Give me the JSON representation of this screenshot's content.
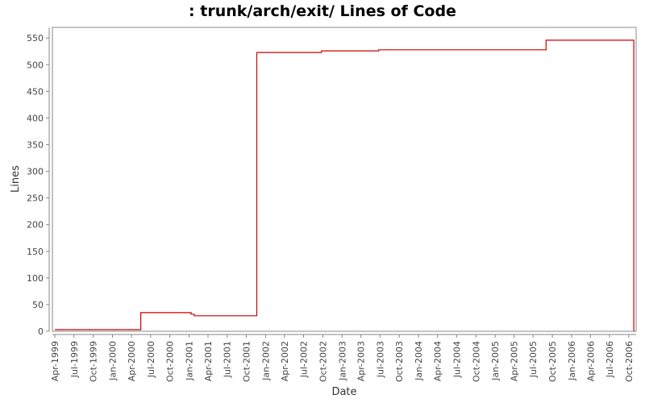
{
  "chart_data": {
    "type": "line",
    "title": ": trunk/arch/exit/ Lines of Code",
    "xlabel": "Date",
    "ylabel": "Lines",
    "ylim": [
      0,
      570
    ],
    "yticks": [
      0,
      50,
      100,
      150,
      200,
      250,
      300,
      350,
      400,
      450,
      500,
      550
    ],
    "xlim": [
      "1999-03-20",
      "2006-11-05"
    ],
    "xticks": [
      {
        "label": "Apr-1999",
        "date": "1999-04-01"
      },
      {
        "label": "Jul-1999",
        "date": "1999-07-01"
      },
      {
        "label": "Oct-1999",
        "date": "1999-10-01"
      },
      {
        "label": "Jan-2000",
        "date": "2000-01-01"
      },
      {
        "label": "Apr-2000",
        "date": "2000-04-01"
      },
      {
        "label": "Jul-2000",
        "date": "2000-07-01"
      },
      {
        "label": "Oct-2000",
        "date": "2000-10-01"
      },
      {
        "label": "Jan-2001",
        "date": "2001-01-01"
      },
      {
        "label": "Apr-2001",
        "date": "2001-04-01"
      },
      {
        "label": "Jul-2001",
        "date": "2001-07-01"
      },
      {
        "label": "Oct-2001",
        "date": "2001-10-01"
      },
      {
        "label": "Jan-2002",
        "date": "2002-01-01"
      },
      {
        "label": "Apr-2002",
        "date": "2002-04-01"
      },
      {
        "label": "Jul-2002",
        "date": "2002-07-01"
      },
      {
        "label": "Oct-2002",
        "date": "2002-10-01"
      },
      {
        "label": "Jan-2003",
        "date": "2003-01-01"
      },
      {
        "label": "Apr-2003",
        "date": "2003-04-01"
      },
      {
        "label": "Jul-2003",
        "date": "2003-07-01"
      },
      {
        "label": "Oct-2003",
        "date": "2003-10-01"
      },
      {
        "label": "Jan-2004",
        "date": "2004-01-01"
      },
      {
        "label": "Apr-2004",
        "date": "2004-04-01"
      },
      {
        "label": "Jul-2004",
        "date": "2004-07-01"
      },
      {
        "label": "Oct-2004",
        "date": "2004-10-01"
      },
      {
        "label": "Jan-2005",
        "date": "2005-01-01"
      },
      {
        "label": "Apr-2005",
        "date": "2005-04-01"
      },
      {
        "label": "Jul-2005",
        "date": "2005-07-01"
      },
      {
        "label": "Oct-2005",
        "date": "2005-10-01"
      },
      {
        "label": "Jan-2006",
        "date": "2006-01-01"
      },
      {
        "label": "Apr-2006",
        "date": "2006-04-01"
      },
      {
        "label": "Jul-2006",
        "date": "2006-07-01"
      },
      {
        "label": "Oct-2006",
        "date": "2006-10-01"
      }
    ],
    "series": [
      {
        "color": "#cc0000",
        "step": true,
        "points": [
          {
            "x": "1999-04-01",
            "y": 3
          },
          {
            "x": "2000-05-15",
            "y": 35
          },
          {
            "x": "2001-01-10",
            "y": 32
          },
          {
            "x": "2001-01-25",
            "y": 29
          },
          {
            "x": "2001-11-20",
            "y": 523
          },
          {
            "x": "2002-09-25",
            "y": 526
          },
          {
            "x": "2003-06-25",
            "y": 528
          },
          {
            "x": "2005-09-01",
            "y": 546
          },
          {
            "x": "2006-10-25",
            "y": 0
          }
        ]
      }
    ],
    "grid": false,
    "legend": "none"
  }
}
